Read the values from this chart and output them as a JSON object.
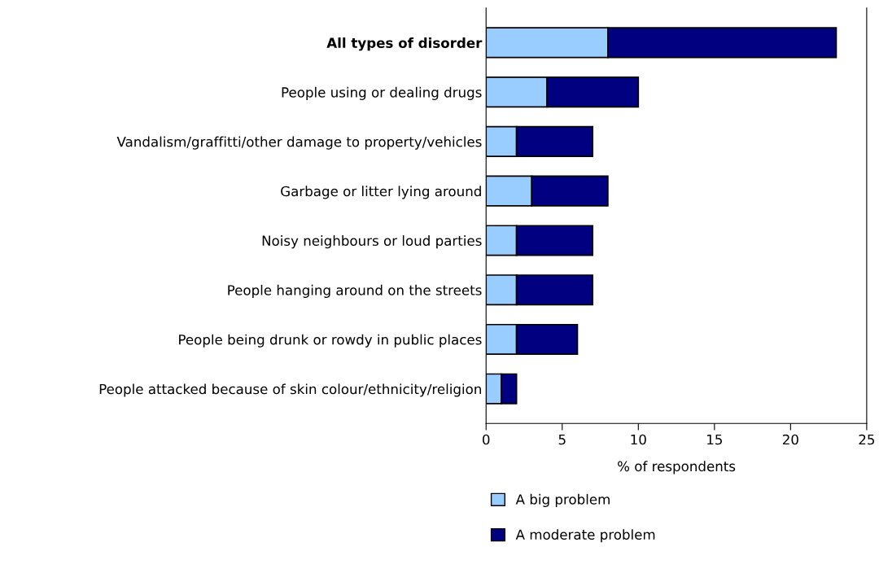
{
  "chart_data": {
    "type": "bar",
    "orientation": "horizontal",
    "stacked": true,
    "categories": [
      "All types of disorder",
      "People using or dealing drugs",
      "Vandalism/graffitti/other damage to property/vehicles",
      "Garbage or litter lying around",
      "Noisy neighbours or loud parties",
      "People hanging around on the streets",
      "People being drunk or rowdy in public places",
      "People attacked because of skin colour/ethnicity/religion"
    ],
    "series": [
      {
        "name": "A big problem",
        "color": "#99ccff",
        "values": [
          8,
          4,
          2,
          3,
          2,
          2,
          2,
          1
        ]
      },
      {
        "name": "A moderate problem",
        "color": "#000080",
        "values": [
          15,
          6,
          5,
          5,
          5,
          5,
          4,
          1
        ]
      }
    ],
    "xlabel": "% of respondents",
    "xlim": [
      0,
      25
    ],
    "xticks": [
      0,
      5,
      10,
      15,
      20,
      25
    ],
    "grid": false,
    "legend": "bottom"
  }
}
